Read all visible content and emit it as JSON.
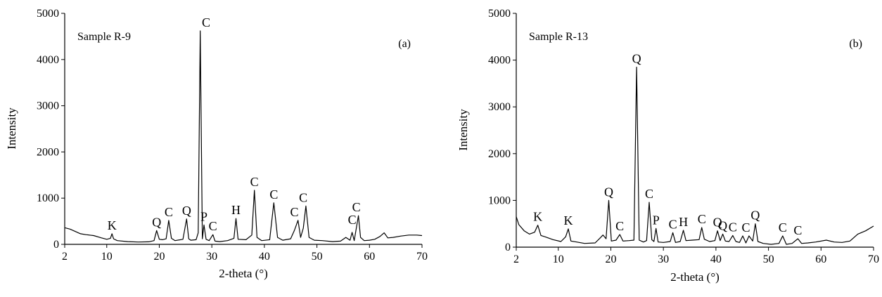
{
  "chart_data": [
    {
      "type": "line",
      "sample_label": "Sample R-9",
      "panel_label": "(a)",
      "xlabel": "2-theta (°)",
      "ylabel": "Intensity",
      "xlim": [
        2,
        70
      ],
      "ylim": [
        0,
        5000
      ],
      "xticks": [
        2,
        10,
        20,
        30,
        40,
        50,
        60,
        70
      ],
      "yticks": [
        0,
        1000,
        2000,
        3000,
        4000,
        5000
      ],
      "series": [
        {
          "x": [
            2,
            3,
            4,
            5,
            6,
            7.5,
            9,
            10,
            10.7,
            11,
            11.3,
            12,
            14,
            16,
            18,
            19,
            19.5,
            20,
            20.6,
            21.3,
            21.8,
            22.3,
            23,
            24.5,
            25.2,
            25.6,
            26,
            27,
            27.4,
            27.8,
            28.2,
            28.5,
            28.9,
            29.5,
            30.2,
            30.6,
            31.5,
            33,
            34.2,
            34.6,
            35,
            36.5,
            37.6,
            38.1,
            38.6,
            39.5,
            41,
            41.8,
            42.5,
            43.5,
            45,
            45.7,
            46.4,
            46.9,
            47.4,
            47.9,
            48.5,
            49.5,
            51,
            53,
            54.5,
            55.5,
            56.3,
            56.7,
            57.1,
            57.5,
            57.9,
            58.3,
            59,
            60,
            61,
            62,
            62.8,
            63.5,
            64.5,
            66,
            67.5,
            69,
            70
          ],
          "y": [
            360,
            330,
            280,
            230,
            210,
            190,
            140,
            110,
            130,
            230,
            120,
            80,
            60,
            50,
            55,
            80,
            300,
            110,
            100,
            120,
            520,
            130,
            80,
            110,
            550,
            120,
            90,
            100,
            250,
            4620,
            120,
            420,
            110,
            80,
            210,
            70,
            60,
            80,
            130,
            560,
            110,
            100,
            200,
            1170,
            150,
            80,
            100,
            900,
            150,
            90,
            120,
            300,
            520,
            150,
            350,
            830,
            150,
            90,
            80,
            60,
            70,
            150,
            90,
            260,
            80,
            350,
            620,
            150,
            80,
            90,
            110,
            170,
            250,
            140,
            150,
            180,
            200,
            200,
            190
          ]
        }
      ],
      "annotations": [
        {
          "text": "K",
          "x": 11.0,
          "y": 230
        },
        {
          "text": "Q",
          "x": 19.5,
          "y": 300
        },
        {
          "text": "C",
          "x": 21.8,
          "y": 520
        },
        {
          "text": "Q",
          "x": 25.2,
          "y": 550
        },
        {
          "text": "C",
          "x": 28.9,
          "y": 4620
        },
        {
          "text": "P",
          "x": 28.5,
          "y": 420
        },
        {
          "text": "C",
          "x": 30.2,
          "y": 210
        },
        {
          "text": "H",
          "x": 34.6,
          "y": 560
        },
        {
          "text": "C",
          "x": 38.1,
          "y": 1170
        },
        {
          "text": "C",
          "x": 41.8,
          "y": 900
        },
        {
          "text": "C",
          "x": 45.7,
          "y": 520
        },
        {
          "text": "C",
          "x": 47.4,
          "y": 830
        },
        {
          "text": "C",
          "x": 56.7,
          "y": 350
        },
        {
          "text": "C",
          "x": 57.5,
          "y": 620
        }
      ]
    },
    {
      "type": "line",
      "sample_label": "Sample R-13",
      "panel_label": "(b)",
      "xlabel": "2-theta (°)",
      "ylabel": "Intensity",
      "xlim": [
        2,
        70
      ],
      "ylim": [
        0,
        5000
      ],
      "xticks": [
        2,
        10,
        20,
        30,
        40,
        50,
        60,
        70
      ],
      "yticks": [
        0,
        1000,
        2000,
        3000,
        4000,
        5000
      ],
      "series": [
        {
          "x": [
            2,
            2.5,
            3.5,
            4.5,
            5.5,
            6.1,
            6.7,
            7.5,
            9,
            10.5,
            11.4,
            11.9,
            12.4,
            13.5,
            15,
            17,
            18,
            18.5,
            19.1,
            19.6,
            20.1,
            21,
            21.7,
            22.3,
            23.5,
            24.4,
            24.9,
            25.4,
            26.2,
            26.8,
            27.3,
            27.8,
            28.2,
            28.6,
            29,
            30,
            31.3,
            31.8,
            32.3,
            33.2,
            33.8,
            34.3,
            35.5,
            36.8,
            37.3,
            37.8,
            38.8,
            39.8,
            40.3,
            40.8,
            41.3,
            41.8,
            42.5,
            43.2,
            43.8,
            44.5,
            45.1,
            45.7,
            46.3,
            47,
            47.5,
            48,
            49,
            50.5,
            52,
            52.7,
            53.4,
            54.5,
            55.6,
            56.3,
            57.5,
            59,
            61,
            62.5,
            64,
            65.5,
            67,
            68.5,
            70
          ],
          "y": [
            650,
            480,
            350,
            280,
            320,
            470,
            250,
            220,
            160,
            120,
            220,
            390,
            130,
            110,
            80,
            90,
            200,
            260,
            180,
            1000,
            130,
            150,
            270,
            130,
            140,
            150,
            3850,
            150,
            110,
            140,
            960,
            160,
            120,
            400,
            110,
            100,
            120,
            310,
            100,
            120,
            360,
            140,
            150,
            160,
            420,
            170,
            120,
            140,
            350,
            140,
            280,
            130,
            120,
            250,
            120,
            100,
            240,
            90,
            240,
            130,
            500,
            120,
            80,
            60,
            80,
            240,
            60,
            80,
            180,
            80,
            90,
            110,
            150,
            110,
            100,
            130,
            280,
            350,
            450
          ]
        }
      ],
      "annotations": [
        {
          "text": "K",
          "x": 6.1,
          "y": 470
        },
        {
          "text": "K",
          "x": 11.9,
          "y": 390
        },
        {
          "text": "Q",
          "x": 19.6,
          "y": 1000
        },
        {
          "text": "C",
          "x": 21.7,
          "y": 270
        },
        {
          "text": "Q",
          "x": 24.9,
          "y": 3850
        },
        {
          "text": "C",
          "x": 27.3,
          "y": 960
        },
        {
          "text": "P",
          "x": 28.6,
          "y": 400
        },
        {
          "text": "C",
          "x": 31.8,
          "y": 310
        },
        {
          "text": "H",
          "x": 33.8,
          "y": 360
        },
        {
          "text": "C",
          "x": 37.3,
          "y": 420
        },
        {
          "text": "Q",
          "x": 40.3,
          "y": 350
        },
        {
          "text": "Q",
          "x": 41.3,
          "y": 280
        },
        {
          "text": "C",
          "x": 43.2,
          "y": 250
        },
        {
          "text": "C",
          "x": 45.7,
          "y": 240
        },
        {
          "text": "Q",
          "x": 47.5,
          "y": 500
        },
        {
          "text": "C",
          "x": 52.7,
          "y": 240
        },
        {
          "text": "C",
          "x": 55.6,
          "y": 180
        }
      ]
    }
  ]
}
